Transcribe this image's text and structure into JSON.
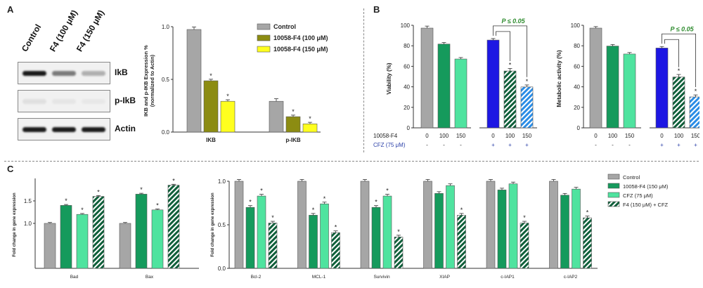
{
  "panels": {
    "a": "A",
    "b": "B",
    "c": "C"
  },
  "colors": {
    "grey": "#a6a6a6",
    "olive": "#8c8c12",
    "yellow": "#ffff1f",
    "dark_green": "#159a5c",
    "light_green": "#4fe39f",
    "blue": "#1d17e3",
    "hatch_dark": "#0f5f3a",
    "hatch_light": "#2b8de6"
  },
  "blot": {
    "lanes": [
      "Control",
      "F4 (100 μM)",
      "F4 (150 μM)"
    ],
    "rows": [
      "IkB",
      "p-IkB",
      "Actin"
    ],
    "intensity": [
      [
        1.0,
        0.55,
        0.3
      ],
      [
        0.08,
        0.05,
        0.04
      ],
      [
        1.0,
        1.0,
        1.0
      ]
    ]
  },
  "chart_data": [
    {
      "id": "a_ikb",
      "type": "bar",
      "ylabel": "IKB and p-IKB Expression %\n(normalized to Actin)",
      "ylim": [
        0,
        1.0
      ],
      "yticks": [
        "0.0",
        "0.5",
        "1.0"
      ],
      "categories": [
        "IKB",
        "p-IKB"
      ],
      "legend": [
        "Control",
        "10058-F4 (100 μM)",
        "10058-F4 (150 μM)"
      ],
      "series": [
        {
          "name": "Control",
          "color": "grey",
          "values": [
            1.0,
            0.3
          ],
          "errors": [
            0.025,
            0.025
          ],
          "stars": [
            "",
            ""
          ]
        },
        {
          "name": "10058-F4 (100 μM)",
          "color": "olive",
          "values": [
            0.5,
            0.15
          ],
          "errors": [
            0.015,
            0.015
          ],
          "stars": [
            "*",
            "*"
          ]
        },
        {
          "name": "10058-F4 (150 μM)",
          "color": "yellow",
          "values": [
            0.3,
            0.08
          ],
          "errors": [
            0.015,
            0.015
          ],
          "stars": [
            "*",
            "*"
          ]
        }
      ]
    },
    {
      "id": "b_viability",
      "type": "bar",
      "ylabel": "Viability (%)",
      "ylim": [
        0,
        100
      ],
      "yticks": [
        "0",
        "20",
        "40",
        "60",
        "80",
        "100"
      ],
      "bars": [
        {
          "value": 100,
          "error": 2,
          "color": "grey",
          "dose": "0",
          "cfz": "-",
          "star": ""
        },
        {
          "value": 84,
          "error": 1.5,
          "color": "dark_green",
          "dose": "100",
          "cfz": "-",
          "star": ""
        },
        {
          "value": 69,
          "error": 1.5,
          "color": "light_green",
          "dose": "150",
          "cfz": "-",
          "star": ""
        },
        {
          "value": 88,
          "error": 1.5,
          "color": "blue",
          "dose": "0",
          "cfz": "+",
          "star": ""
        },
        {
          "value": 57,
          "error": 2.5,
          "color": "hatch_dark",
          "dose": "100",
          "cfz": "+",
          "star": "*"
        },
        {
          "value": 41,
          "error": 2,
          "color": "hatch_light",
          "dose": "150",
          "cfz": "+",
          "star": "*"
        }
      ],
      "significance": "P ≤ 0.05",
      "row_labels": [
        "10058-F4",
        "CFZ (75 μM)"
      ]
    },
    {
      "id": "b_metabolic",
      "type": "bar",
      "ylabel": "Metabolic activity (%)",
      "ylim": [
        0,
        100
      ],
      "yticks": [
        "0",
        "20",
        "40",
        "60",
        "80",
        "100"
      ],
      "bars": [
        {
          "value": 100,
          "error": 1.5,
          "color": "grey",
          "dose": "0",
          "cfz": "-",
          "star": ""
        },
        {
          "value": 82,
          "error": 1.5,
          "color": "dark_green",
          "dose": "100",
          "cfz": "-",
          "star": ""
        },
        {
          "value": 74,
          "error": 1.5,
          "color": "light_green",
          "dose": "150",
          "cfz": "-",
          "star": ""
        },
        {
          "value": 80,
          "error": 1.5,
          "color": "blue",
          "dose": "0",
          "cfz": "+",
          "star": ""
        },
        {
          "value": 51,
          "error": 2.5,
          "color": "hatch_dark",
          "dose": "100",
          "cfz": "+",
          "star": "*"
        },
        {
          "value": 31,
          "error": 2,
          "color": "hatch_light",
          "dose": "150",
          "cfz": "+",
          "star": "*"
        }
      ],
      "significance": "P ≤ 0.05",
      "row_labels": [
        "",
        ""
      ]
    },
    {
      "id": "c_left",
      "type": "bar",
      "ylabel": "Fold change in gene expression",
      "ylim": [
        0,
        2.0
      ],
      "yticks": [
        "1.0",
        "1.5"
      ],
      "categories": [
        "Bad",
        "Bax"
      ],
      "series": [
        {
          "name": "Control",
          "color": "grey",
          "values": [
            1.0,
            1.0
          ],
          "stars": [
            "",
            ""
          ]
        },
        {
          "name": "10058-F4 (150 μM)",
          "color": "dark_green",
          "values": [
            1.4,
            1.65
          ],
          "stars": [
            "*",
            "*"
          ]
        },
        {
          "name": "CFZ (75 μM)",
          "color": "light_green",
          "values": [
            1.2,
            1.3
          ],
          "stars": [
            "*",
            "*"
          ]
        },
        {
          "name": "F4 (150 μM) + CFZ",
          "color": "hatch_dark",
          "values": [
            1.6,
            1.85
          ],
          "stars": [
            "*",
            "*"
          ]
        }
      ]
    },
    {
      "id": "c_right",
      "type": "bar",
      "ylabel": "Fold change in gene expression",
      "ylim": [
        0,
        1.0
      ],
      "yticks": [
        "0.0",
        "0.5",
        "1.0"
      ],
      "categories": [
        "Bcl-2",
        "MCL-1",
        "Survivin",
        "XIAP",
        "c-IAP1",
        "c-IAP2"
      ],
      "legend": [
        "Control",
        "10058-F4 (150 μM)",
        "CFZ (75 μM)",
        "F4 (150 μM) + CFZ"
      ],
      "series": [
        {
          "name": "Control",
          "color": "grey",
          "values": [
            1.0,
            1.0,
            1.0,
            1.0,
            1.0,
            1.0
          ],
          "stars": [
            "",
            "",
            "",
            "",
            "",
            ""
          ]
        },
        {
          "name": "10058-F4 (150 μM)",
          "color": "dark_green",
          "values": [
            0.7,
            0.61,
            0.7,
            0.86,
            0.9,
            0.84
          ],
          "stars": [
            "*",
            "*",
            "*",
            "",
            "",
            ""
          ]
        },
        {
          "name": "CFZ (75 μM)",
          "color": "light_green",
          "values": [
            0.83,
            0.74,
            0.83,
            0.95,
            0.97,
            0.91
          ],
          "stars": [
            "*",
            "*",
            "*",
            "",
            "",
            ""
          ]
        },
        {
          "name": "F4 (150 μM) + CFZ",
          "color": "hatch_dark",
          "values": [
            0.52,
            0.41,
            0.36,
            0.61,
            0.52,
            0.58
          ],
          "stars": [
            "*",
            "*",
            "*",
            "*",
            "*",
            "*"
          ]
        }
      ]
    }
  ]
}
